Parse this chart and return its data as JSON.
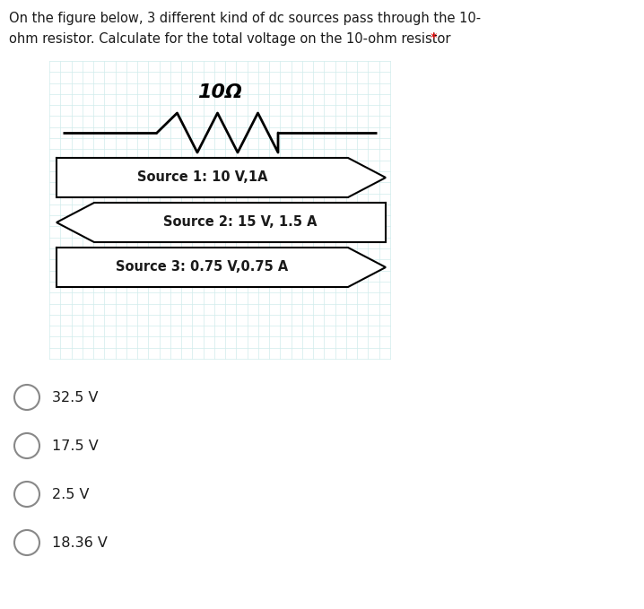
{
  "title_line1": "On the figure below, 3 different kind of dc sources pass through the 10-",
  "title_line2": "ohm resistor. Calculate for the total voltage on the 10-ohm resistor",
  "title_asterisk": "*",
  "resistor_label": "10Ω",
  "sources": [
    {
      "label": "Source 1: 10 V,1A",
      "direction": "right"
    },
    {
      "label": "Source 2: 15 V, 1.5 A",
      "direction": "left"
    },
    {
      "label": "Source 3: 0.75 V,0.75 A",
      "direction": "right"
    }
  ],
  "options": [
    "32.5 V",
    "17.5 V",
    "2.5 V",
    "18.36 V"
  ],
  "bg_color": "#ffffff",
  "grid_color_h": "#d0ecec",
  "grid_color_v": "#d8f0f0",
  "text_color": "#1a1a1a",
  "fig_width": 7.18,
  "fig_height": 6.79
}
